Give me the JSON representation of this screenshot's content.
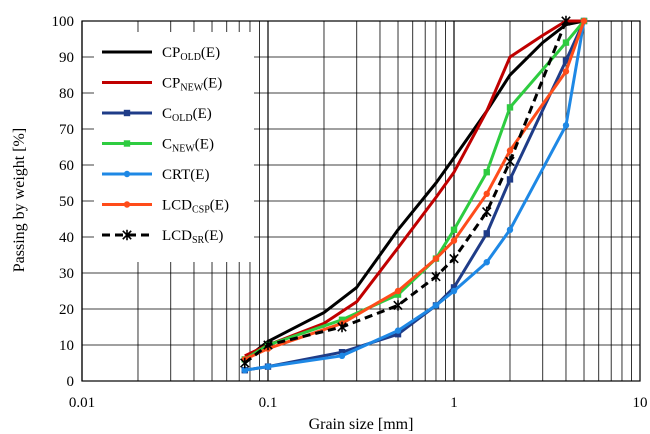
{
  "chart_data": {
    "type": "line",
    "xscale": "log",
    "xlim": [
      0.01,
      10
    ],
    "ylim": [
      0,
      100
    ],
    "xlabel": "Grain size [mm]",
    "ylabel": "Passing by weight  [%]",
    "xticks": [
      "0.01",
      "0.1",
      "1",
      "10"
    ],
    "yticks": [
      "0",
      "10",
      "20",
      "30",
      "40",
      "50",
      "60",
      "70",
      "80",
      "90",
      "100"
    ],
    "grid": true,
    "legend_position": "top-left",
    "series": [
      {
        "name": "CP",
        "sub": "OLD",
        "suffix": "(E)",
        "color": "#000000",
        "dash": false,
        "marker": "none",
        "x": [
          0.075,
          0.1,
          0.2,
          0.3,
          0.5,
          0.8,
          1,
          1.5,
          2,
          3,
          4,
          5
        ],
        "y": [
          6,
          11,
          19,
          26,
          42,
          55,
          62,
          75,
          85,
          94,
          99,
          100
        ]
      },
      {
        "name": "CP",
        "sub": "NEW",
        "suffix": "(E)",
        "color": "#c00000",
        "dash": false,
        "marker": "none",
        "x": [
          0.075,
          0.1,
          0.2,
          0.3,
          0.5,
          0.8,
          1,
          1.5,
          2,
          3,
          4,
          5
        ],
        "y": [
          7,
          10,
          16,
          22,
          37,
          51,
          58,
          75,
          90,
          96,
          100,
          100
        ]
      },
      {
        "name": "C",
        "sub": "OLD",
        "suffix": "(E)",
        "color": "#1f3c88",
        "dash": false,
        "marker": "square",
        "x": [
          0.075,
          0.1,
          0.25,
          0.5,
          0.8,
          1,
          1.5,
          2,
          4,
          5
        ],
        "y": [
          3,
          4,
          8,
          13,
          21,
          26,
          41,
          56,
          89,
          100
        ]
      },
      {
        "name": "C",
        "sub": "NEW",
        "suffix": "(E)",
        "color": "#2ecc40",
        "dash": false,
        "marker": "square",
        "x": [
          0.075,
          0.1,
          0.25,
          0.5,
          0.8,
          1,
          1.5,
          2,
          4,
          5
        ],
        "y": [
          6,
          10,
          17,
          24,
          34,
          42,
          58,
          76,
          94,
          100
        ]
      },
      {
        "name": "CRT",
        "sub": "",
        "suffix": "(E)",
        "color": "#1e88e5",
        "dash": false,
        "marker": "circle",
        "x": [
          0.075,
          0.1,
          0.25,
          0.5,
          0.8,
          1,
          1.5,
          2,
          4,
          5
        ],
        "y": [
          3,
          4,
          7,
          14,
          21,
          25,
          33,
          42,
          71,
          100
        ]
      },
      {
        "name": "LCD",
        "sub": "CSP",
        "suffix": "(E)",
        "color": "#ff4c1a",
        "dash": false,
        "marker": "circle",
        "x": [
          0.075,
          0.1,
          0.25,
          0.5,
          0.8,
          1,
          1.5,
          2,
          4,
          5
        ],
        "y": [
          6,
          9,
          16,
          25,
          34,
          39,
          52,
          64,
          86,
          100
        ]
      },
      {
        "name": "LCD",
        "sub": "SR",
        "suffix": "(E)",
        "color": "#000000",
        "dash": true,
        "marker": "x",
        "x": [
          0.075,
          0.1,
          0.25,
          0.5,
          0.8,
          1,
          1.5,
          2,
          4
        ],
        "y": [
          5,
          10,
          15,
          21,
          29,
          34,
          47,
          61,
          100
        ]
      }
    ]
  }
}
